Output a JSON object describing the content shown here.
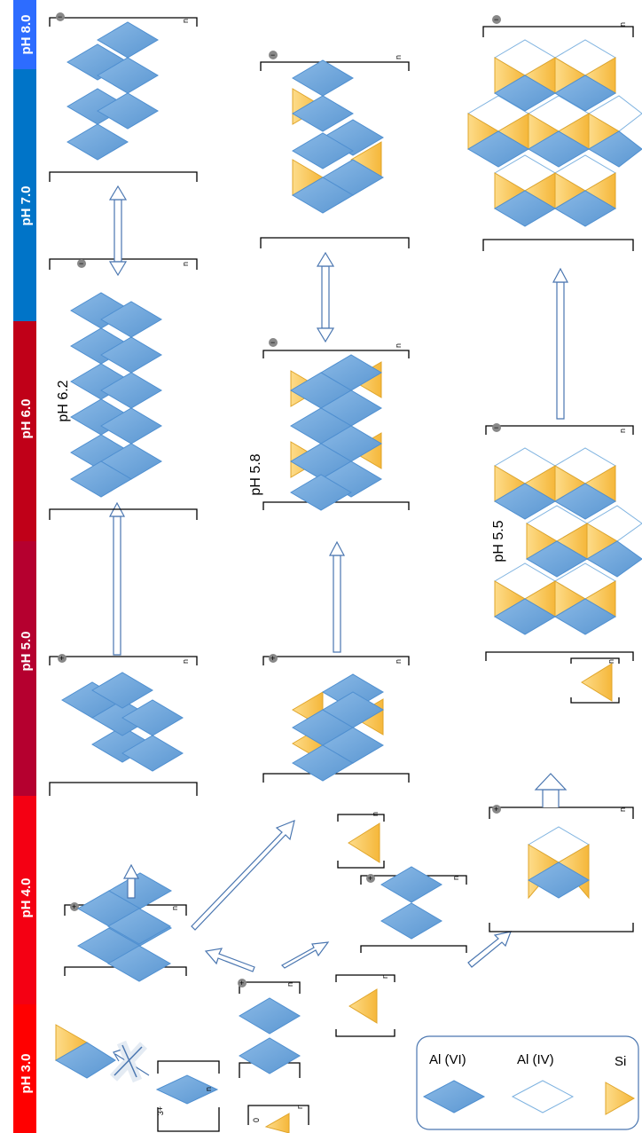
{
  "ph_bar": [
    {
      "label": "pH 3.0",
      "color": "#ff0000"
    },
    {
      "label": "pH 4.0",
      "color": "#f40013"
    },
    {
      "label": "pH 5.0",
      "color": "#b5002f"
    },
    {
      "label": "pH 6.0",
      "color": "#c00018"
    },
    {
      "label": "pH 7.0",
      "color": "#0074c8"
    },
    {
      "label": "pH 8.0",
      "color": "#2d6cff"
    }
  ],
  "transition_labels": {
    "ph_6_2": "pH 6.2",
    "ph_5_8": "pH 5.8",
    "ph_5_5": "pH 5.5"
  },
  "charges": {
    "plus": "+",
    "zero": "0",
    "minus": "−",
    "three_plus": "3+",
    "n": "n"
  },
  "legend": {
    "al_vi": "Al (VI)",
    "al_iv": "Al (IV)",
    "si": "Si"
  },
  "colors": {
    "al_vi_fill": "#6fa8dc",
    "al_iv_stroke": "#7fb3e0",
    "si_fill": "#f9c95a",
    "arrow_stroke": "#4a76b0"
  }
}
